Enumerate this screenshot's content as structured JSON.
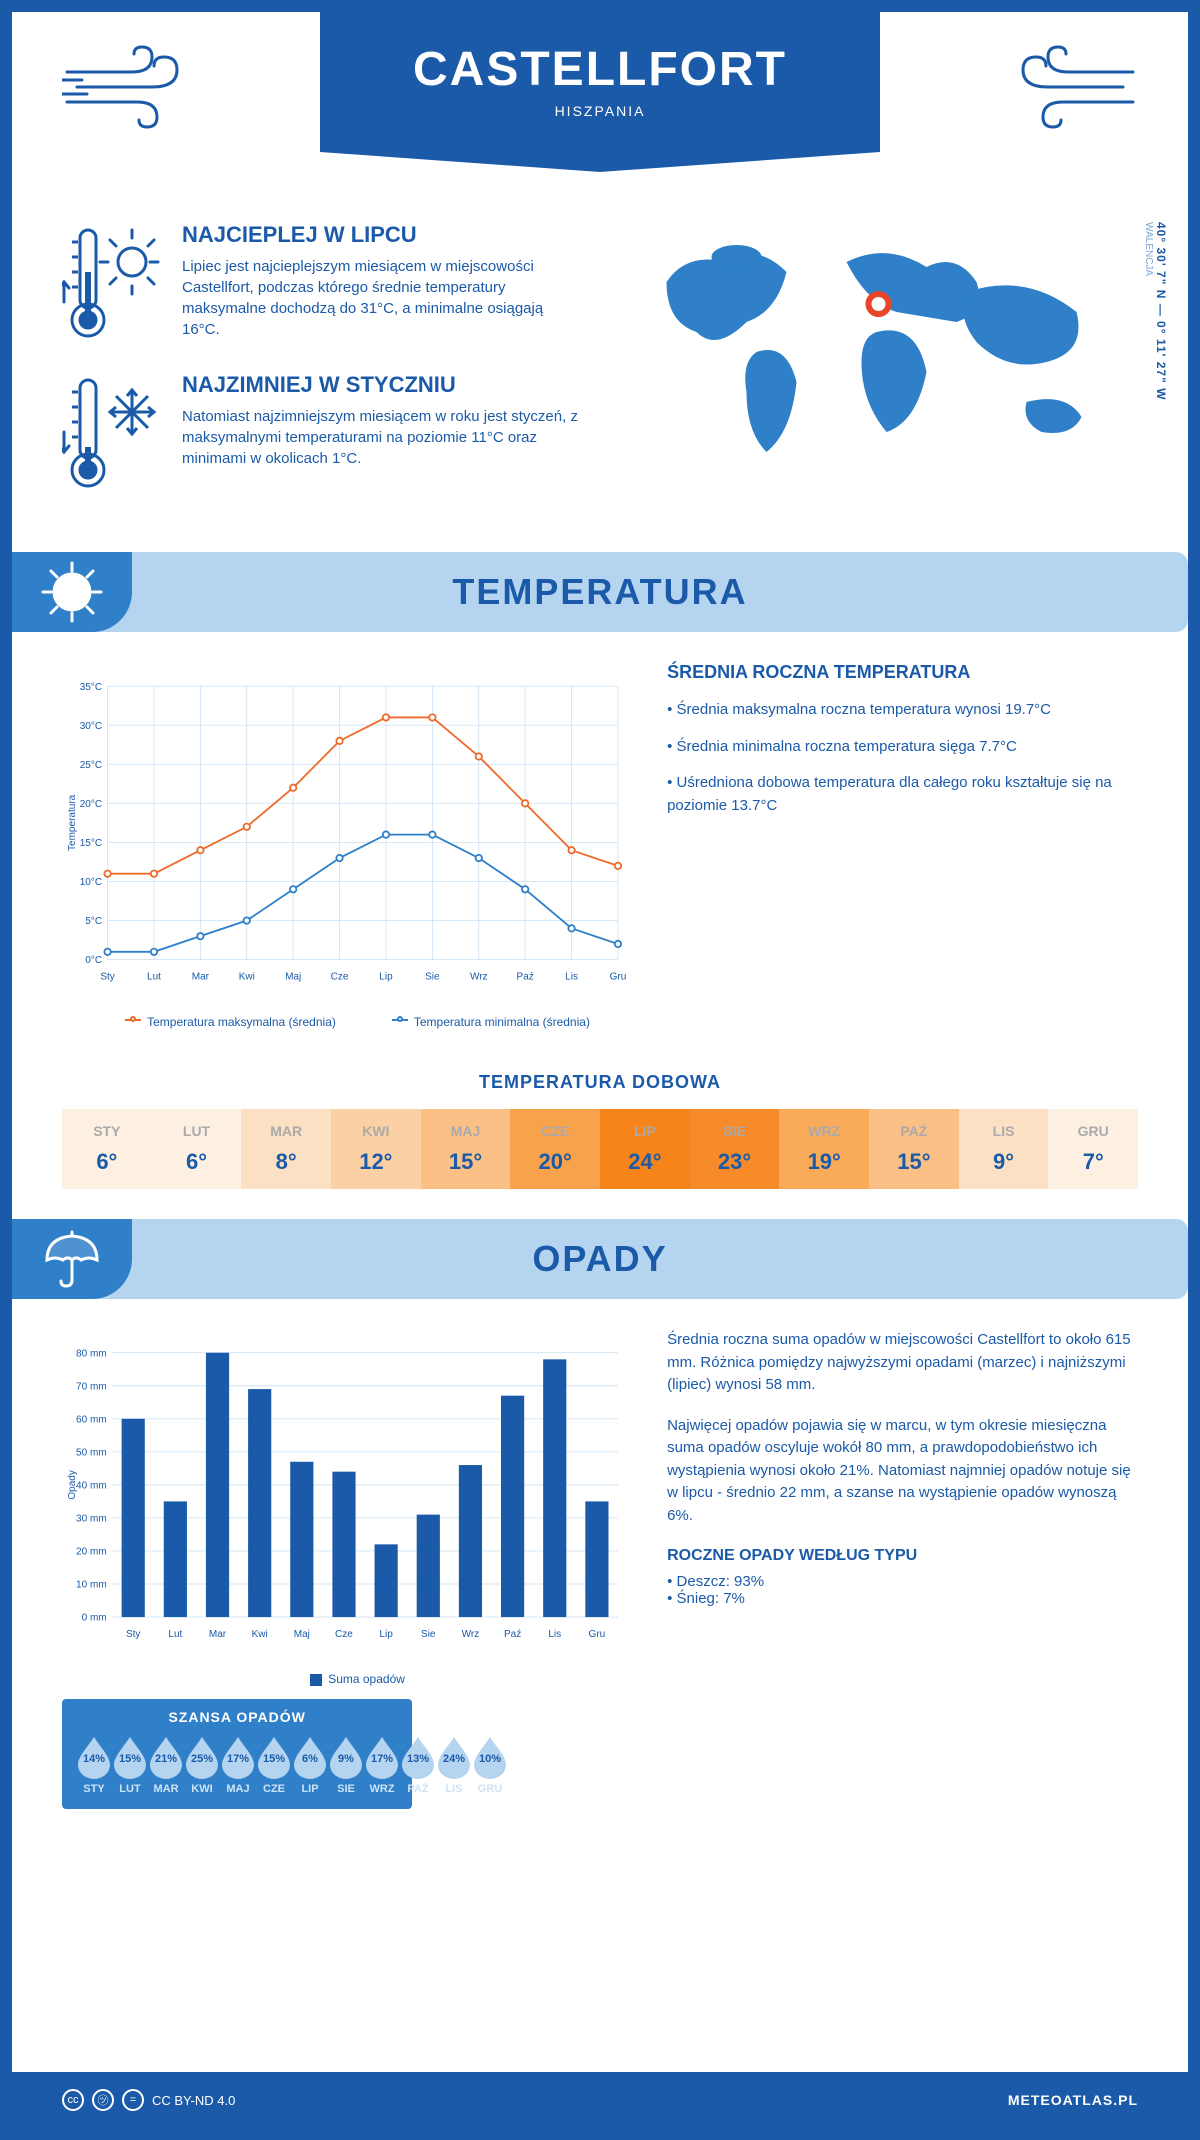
{
  "header": {
    "title": "CASTELLFORT",
    "subtitle": "HISZPANIA"
  },
  "intro": {
    "warm": {
      "title": "NAJCIEPLEJ W LIPCU",
      "text": "Lipiec jest najcieplejszym miesiącem w miejscowości Castellfort, podczas którego średnie temperatury maksymalne dochodzą do 31°C, a minimalne osiągają 16°C."
    },
    "cold": {
      "title": "NAJZIMNIEJ W STYCZNIU",
      "text": "Natomiast najzimniejszym miesiącem w roku jest styczeń, z maksymalnymi temperaturami na poziomie 11°C oraz minimami w okolicach 1°C."
    },
    "coords": "40° 30' 7\" N — 0° 11' 27\" W",
    "region": "WALENCJA"
  },
  "sections": {
    "temperature": "TEMPERATURA",
    "precipitation": "OPADY"
  },
  "months_short": [
    "Sty",
    "Lut",
    "Mar",
    "Kwi",
    "Maj",
    "Cze",
    "Lip",
    "Sie",
    "Wrz",
    "Paź",
    "Lis",
    "Gru"
  ],
  "months_upper": [
    "STY",
    "LUT",
    "MAR",
    "KWI",
    "MAJ",
    "CZE",
    "LIP",
    "SIE",
    "WRZ",
    "PAŹ",
    "LIS",
    "GRU"
  ],
  "temp_chart": {
    "type": "line",
    "ylabel": "Temperatura",
    "y_ticks": [
      0,
      5,
      10,
      15,
      20,
      25,
      30,
      35
    ],
    "y_tick_labels": [
      "0°C",
      "5°C",
      "10°C",
      "15°C",
      "20°C",
      "25°C",
      "30°C",
      "35°C"
    ],
    "ylim": [
      0,
      35
    ],
    "series": {
      "max": {
        "label": "Temperatura maksymalna (średnia)",
        "color": "#ed6b2b",
        "values": [
          11,
          11,
          14,
          17,
          22,
          28,
          31,
          31,
          26,
          20,
          14,
          12
        ]
      },
      "min": {
        "label": "Temperatura minimalna (średnia)",
        "color": "#2f7fc9",
        "values": [
          1,
          1,
          3,
          5,
          9,
          13,
          16,
          16,
          13,
          9,
          4,
          2
        ]
      }
    },
    "grid_color": "#d0e4f5",
    "background": "#ffffff",
    "line_width": 2,
    "marker": "circle"
  },
  "temp_info": {
    "heading": "ŚREDNIA ROCZNA TEMPERATURA",
    "bullets": [
      "Średnia maksymalna roczna temperatura wynosi 19.7°C",
      "Średnia minimalna roczna temperatura sięga 7.7°C",
      "Uśredniona dobowa temperatura dla całego roku kształtuje się na poziomie 13.7°C"
    ]
  },
  "daily": {
    "title": "TEMPERATURA DOBOWA",
    "values": [
      6,
      6,
      8,
      12,
      15,
      20,
      24,
      23,
      19,
      15,
      9,
      7
    ],
    "colors": [
      "#fdf0e2",
      "#fdf0e2",
      "#fce0c3",
      "#fbd0a4",
      "#fac086",
      "#f8a24b",
      "#f6841a",
      "#f78b2a",
      "#f9ab5a",
      "#fac086",
      "#fce0c3",
      "#fdf0e2"
    ]
  },
  "precip_chart": {
    "type": "bar",
    "ylabel": "Opady",
    "y_ticks": [
      0,
      10,
      20,
      30,
      40,
      50,
      60,
      70,
      80
    ],
    "y_tick_labels": [
      "0 mm",
      "10 mm",
      "20 mm",
      "30 mm",
      "40 mm",
      "50 mm",
      "60 mm",
      "70 mm",
      "80 mm"
    ],
    "ylim": [
      0,
      80
    ],
    "values": [
      60,
      35,
      80,
      69,
      47,
      44,
      22,
      31,
      46,
      67,
      78,
      35
    ],
    "bar_color": "#1a5aa8",
    "legend": "Suma opadów",
    "grid_color": "#d0e4f5",
    "bar_width": 0.55
  },
  "precip_info": {
    "p1": "Średnia roczna suma opadów w miejscowości Castellfort to około 615 mm. Różnica pomiędzy najwyższymi opadami (marzec) i najniższymi (lipiec) wynosi 58 mm.",
    "p2": "Najwięcej opadów pojawia się w marcu, w tym okresie miesięczna suma opadów oscyluje wokół 80 mm, a prawdopodobieństwo ich wystąpienia wynosi około 21%. Natomiast najmniej opadów notuje się w lipcu - średnio 22 mm, a szanse na wystąpienie opadów wynoszą 6%.",
    "type_heading": "ROCZNE OPADY WEDŁUG TYPU",
    "types": [
      "Deszcz: 93%",
      "Śnieg: 7%"
    ]
  },
  "chance": {
    "title": "SZANSA OPADÓW",
    "values": [
      14,
      15,
      21,
      25,
      17,
      15,
      6,
      9,
      17,
      13,
      24,
      10
    ],
    "drop_fill": "#b5d4ef",
    "box_bg": "#2f7fc9"
  },
  "footer": {
    "license": "CC BY-ND 4.0",
    "brand": "METEOATLAS.PL"
  },
  "colors": {
    "primary": "#1a5aa8",
    "light_blue": "#b5d4ef",
    "mid_blue": "#2f7fc9",
    "orange": "#ed6b2b"
  }
}
